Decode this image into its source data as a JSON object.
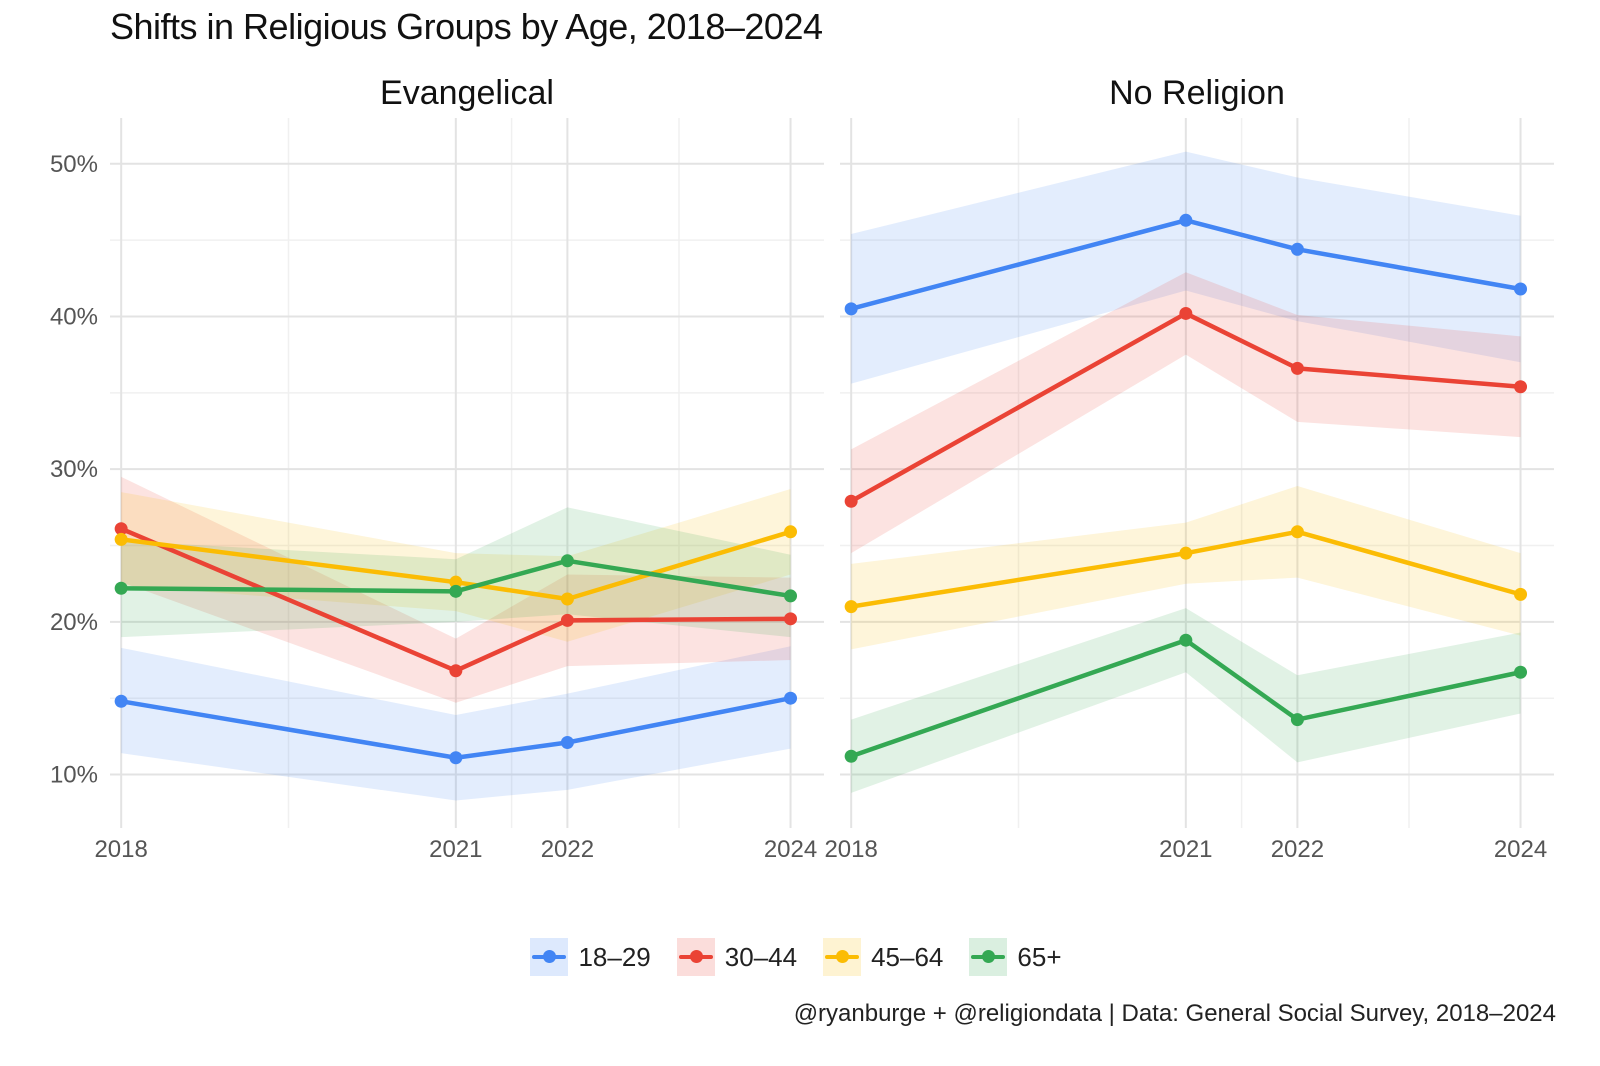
{
  "title": "Shifts in Religious Groups by Age, 2018–2024",
  "caption": "@ryanburge + @religiondata | Data: General Social Survey, 2018–2024",
  "legend": [
    {
      "label": "18–29",
      "color": "#4285F4"
    },
    {
      "label": "30–44",
      "color": "#EA4335"
    },
    {
      "label": "45–64",
      "color": "#FBBC04"
    },
    {
      "label": "65+",
      "color": "#34A853"
    }
  ],
  "chart_data": {
    "type": "line",
    "x": [
      2018,
      2021,
      2022,
      2024
    ],
    "x_tick_labels": [
      "2018",
      "2021",
      "2022",
      "2024"
    ],
    "y_tick_labels": [
      "10%",
      "20%",
      "30%",
      "40%",
      "50%"
    ],
    "ylim": [
      0.065,
      0.53
    ],
    "xlim": [
      2017.9,
      2024.3
    ],
    "grid": true,
    "legend_position": "bottom",
    "error_bands": true,
    "panels": [
      {
        "title": "Evangelical",
        "series": [
          {
            "name": "18–29",
            "color": "#4285F4",
            "values": [
              0.148,
              0.111,
              0.121,
              0.15
            ],
            "lower": [
              0.114,
              0.083,
              0.09,
              0.117
            ],
            "upper": [
              0.183,
              0.139,
              0.153,
              0.184
            ]
          },
          {
            "name": "30–44",
            "color": "#EA4335",
            "values": [
              0.261,
              0.168,
              0.201,
              0.202
            ],
            "lower": [
              0.226,
              0.147,
              0.171,
              0.175
            ],
            "upper": [
              0.295,
              0.189,
              0.231,
              0.229
            ]
          },
          {
            "name": "45–64",
            "color": "#FBBC04",
            "values": [
              0.254,
              0.226,
              0.215,
              0.259
            ],
            "lower": [
              0.224,
              0.207,
              0.187,
              0.231
            ],
            "upper": [
              0.285,
              0.245,
              0.243,
              0.287
            ]
          },
          {
            "name": "65+",
            "color": "#34A853",
            "values": [
              0.222,
              0.22,
              0.24,
              0.217
            ],
            "lower": [
              0.19,
              0.2,
              0.205,
              0.19
            ],
            "upper": [
              0.253,
              0.241,
              0.275,
              0.244
            ]
          }
        ]
      },
      {
        "title": "No Religion",
        "series": [
          {
            "name": "18–29",
            "color": "#4285F4",
            "values": [
              0.405,
              0.463,
              0.444,
              0.418
            ],
            "lower": [
              0.356,
              0.417,
              0.397,
              0.37
            ],
            "upper": [
              0.454,
              0.508,
              0.491,
              0.466
            ]
          },
          {
            "name": "30–44",
            "color": "#EA4335",
            "values": [
              0.279,
              0.402,
              0.366,
              0.354
            ],
            "lower": [
              0.245,
              0.375,
              0.331,
              0.321
            ],
            "upper": [
              0.313,
              0.429,
              0.401,
              0.387
            ]
          },
          {
            "name": "45–64",
            "color": "#FBBC04",
            "values": [
              0.21,
              0.245,
              0.259,
              0.218
            ],
            "lower": [
              0.182,
              0.225,
              0.229,
              0.191
            ],
            "upper": [
              0.238,
              0.265,
              0.289,
              0.245
            ]
          },
          {
            "name": "65+",
            "color": "#34A853",
            "values": [
              0.112,
              0.188,
              0.136,
              0.167
            ],
            "lower": [
              0.088,
              0.167,
              0.108,
              0.14
            ],
            "upper": [
              0.136,
              0.209,
              0.165,
              0.193
            ]
          }
        ]
      }
    ]
  }
}
